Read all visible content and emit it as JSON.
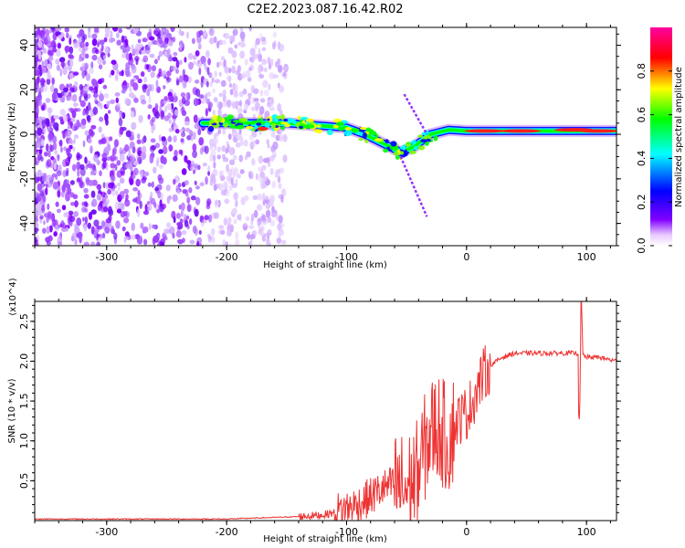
{
  "chart_data": [
    {
      "type": "heatmap",
      "title": "C2E2.2023.087.16.42.R02",
      "xlabel": "Height of straight line (km)",
      "ylabel": "Frequency (Hz)",
      "xlim": [
        -360,
        125
      ],
      "ylim": [
        -50,
        48
      ],
      "xticks": [
        -300,
        -200,
        -100,
        0,
        100
      ],
      "yticks": [
        -40,
        -20,
        0,
        20,
        40
      ],
      "grid": false,
      "colorbar": {
        "label": "Normalized spectral amplitude",
        "range": [
          0,
          1
        ],
        "ticks": [
          "0.0",
          "0.2",
          "0.4",
          "0.6",
          "0.8"
        ],
        "colormap": [
          "#ffffff",
          "#8000ff",
          "#0000ff",
          "#00ffff",
          "#00ff00",
          "#ffff00",
          "#ff0000",
          "#ff00a0"
        ]
      },
      "features": {
        "noise_region_x": [
          -360,
          -150
        ],
        "signal_track": [
          {
            "x": -220,
            "y": 5
          },
          {
            "x": -150,
            "y": 5
          },
          {
            "x": -100,
            "y": 3
          },
          {
            "x": -85,
            "y": 0
          },
          {
            "x": -70,
            "y": -4
          },
          {
            "x": -55,
            "y": -8
          },
          {
            "x": -45,
            "y": -6
          },
          {
            "x": -30,
            "y": 0
          },
          {
            "x": -15,
            "y": 2
          },
          {
            "x": 0,
            "y": 1.5
          },
          {
            "x": 125,
            "y": 1.5
          }
        ],
        "aliases": [
          {
            "x1": -52,
            "y1": 18,
            "x2": -33,
            "y2": 0
          },
          {
            "x1": -55,
            "y1": -10,
            "x2": -33,
            "y2": -37
          }
        ]
      }
    },
    {
      "type": "line",
      "xlabel": "Height of straight line (km)",
      "ylabel": "SNR (10 * v/v)",
      "yscale_label": "(x10^4)",
      "xlim": [
        -360,
        125
      ],
      "ylim": [
        0,
        2.75
      ],
      "xticks": [
        -300,
        -200,
        -100,
        0,
        100
      ],
      "yticks": [
        "0.5",
        "1.0",
        "1.5",
        "2.0",
        "2.5"
      ],
      "grid": false,
      "series": [
        {
          "color": "#ee3333",
          "x": [
            -360,
            -300,
            -250,
            -200,
            -180,
            -160,
            -140,
            -120,
            -110,
            -100,
            -90,
            -80,
            -70,
            -60,
            -50,
            -40,
            -35,
            -30,
            -25,
            -20,
            -15,
            -10,
            -5,
            0,
            5,
            10,
            15,
            20,
            30,
            40,
            50,
            60,
            70,
            80,
            90,
            95,
            100,
            110,
            125
          ],
          "y": [
            0.02,
            0.02,
            0.02,
            0.02,
            0.03,
            0.04,
            0.05,
            0.07,
            0.1,
            0.15,
            0.2,
            0.3,
            0.4,
            0.45,
            0.4,
            0.6,
            0.9,
            1.1,
            1.2,
            1.1,
            1.0,
            1.2,
            1.3,
            1.35,
            1.5,
            1.7,
            1.85,
            1.95,
            2.05,
            2.1,
            2.1,
            2.1,
            2.1,
            2.1,
            2.1,
            2.1,
            2.05,
            2.05,
            2.0
          ]
        }
      ]
    }
  ]
}
